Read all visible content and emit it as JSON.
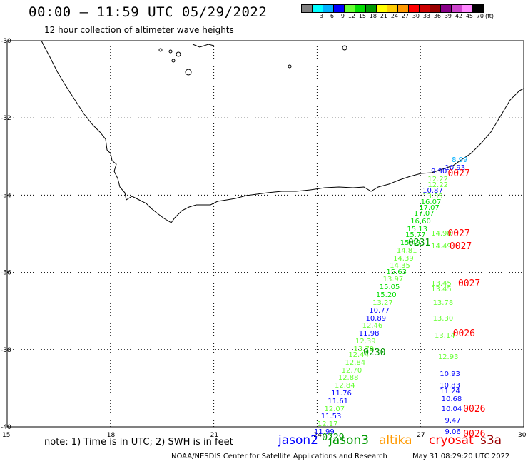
{
  "title": "00:00 – 11:59 UTC 05/29/2022",
  "subtitle": "12 hour collection of altimeter wave heights",
  "colorbar": {
    "unit": "(ft)",
    "colors": [
      "#808080",
      "#00ffff",
      "#00b0ff",
      "#0000ff",
      "#66ff33",
      "#00dd00",
      "#009900",
      "#ffff00",
      "#ffcc00",
      "#ff9900",
      "#ff0000",
      "#cc0000",
      "#990000",
      "#880088",
      "#cc44cc",
      "#ff88ff",
      "#000000"
    ],
    "labels": [
      "",
      "3",
      "6",
      "9",
      "12",
      "15",
      "18",
      "21",
      "24",
      "27",
      "30",
      "33",
      "36",
      "39",
      "42",
      "45",
      "70"
    ]
  },
  "lat_labels": [
    "-30",
    "-32",
    "-34",
    "-36",
    "-38",
    "-40"
  ],
  "lon_labels": [
    "15",
    "18",
    "21",
    "24",
    "27",
    "30"
  ],
  "observations": [
    {
      "v": "8.99",
      "c": "#00b0ff",
      "lon": 28.2,
      "lat": -33.1
    },
    {
      "v": "10.93",
      "c": "#0000ff",
      "lon": 28.0,
      "lat": -33.3
    },
    {
      "v": "9.90",
      "c": "#0000ff",
      "lon": 27.6,
      "lat": -33.4
    },
    {
      "v": "12.22",
      "c": "#66ff33",
      "lon": 27.5,
      "lat": -33.6
    },
    {
      "v": "12.22",
      "c": "#66ff33",
      "lon": 27.5,
      "lat": -33.75
    },
    {
      "v": "10.87",
      "c": "#0000ff",
      "lon": 27.35,
      "lat": -33.9
    },
    {
      "v": "13.35",
      "c": "#66ff33",
      "lon": 27.35,
      "lat": -34.05
    },
    {
      "v": "16.07",
      "c": "#00dd00",
      "lon": 27.3,
      "lat": -34.2
    },
    {
      "v": "17.07",
      "c": "#00dd00",
      "lon": 27.25,
      "lat": -34.35
    },
    {
      "v": "17.07",
      "c": "#00dd00",
      "lon": 27.1,
      "lat": -34.5
    },
    {
      "v": "16.60",
      "c": "#00dd00",
      "lon": 27.0,
      "lat": -34.7
    },
    {
      "v": "15.13",
      "c": "#00dd00",
      "lon": 26.9,
      "lat": -34.9
    },
    {
      "v": "15.77",
      "c": "#00dd00",
      "lon": 26.85,
      "lat": -35.05
    },
    {
      "v": "15.49",
      "c": "#00dd00",
      "lon": 26.7,
      "lat": -35.25
    },
    {
      "v": "14.81",
      "c": "#66ff33",
      "lon": 26.6,
      "lat": -35.45
    },
    {
      "v": "14.39",
      "c": "#66ff33",
      "lon": 26.5,
      "lat": -35.65
    },
    {
      "v": "14.35",
      "c": "#66ff33",
      "lon": 26.4,
      "lat": -35.85
    },
    {
      "v": "15.63",
      "c": "#00dd00",
      "lon": 26.3,
      "lat": -36.0
    },
    {
      "v": "13.97",
      "c": "#66ff33",
      "lon": 26.2,
      "lat": -36.2
    },
    {
      "v": "15.05",
      "c": "#00dd00",
      "lon": 26.1,
      "lat": -36.4
    },
    {
      "v": "15.20",
      "c": "#00dd00",
      "lon": 26.0,
      "lat": -36.6
    },
    {
      "v": "13.27",
      "c": "#66ff33",
      "lon": 25.9,
      "lat": -36.8
    },
    {
      "v": "10.77",
      "c": "#0000ff",
      "lon": 25.8,
      "lat": -37.0
    },
    {
      "v": "10.89",
      "c": "#0000ff",
      "lon": 25.7,
      "lat": -37.2
    },
    {
      "v": "12.46",
      "c": "#66ff33",
      "lon": 25.6,
      "lat": -37.4
    },
    {
      "v": "11.98",
      "c": "#0000ff",
      "lon": 25.5,
      "lat": -37.6
    },
    {
      "v": "12.39",
      "c": "#66ff33",
      "lon": 25.4,
      "lat": -37.8
    },
    {
      "v": "13.79",
      "c": "#66ff33",
      "lon": 25.35,
      "lat": -38.0
    },
    {
      "v": "12.44",
      "c": "#66ff33",
      "lon": 25.2,
      "lat": -38.15
    },
    {
      "v": "12.84",
      "c": "#66ff33",
      "lon": 25.1,
      "lat": -38.35
    },
    {
      "v": "12.70",
      "c": "#66ff33",
      "lon": 25.0,
      "lat": -38.55
    },
    {
      "v": "12.88",
      "c": "#66ff33",
      "lon": 24.9,
      "lat": -38.75
    },
    {
      "v": "12.84",
      "c": "#66ff33",
      "lon": 24.8,
      "lat": -38.95
    },
    {
      "v": "11.76",
      "c": "#0000ff",
      "lon": 24.7,
      "lat": -39.15
    },
    {
      "v": "11.61",
      "c": "#0000ff",
      "lon": 24.6,
      "lat": -39.35
    },
    {
      "v": "12.07",
      "c": "#66ff33",
      "lon": 24.5,
      "lat": -39.55
    },
    {
      "v": "11.53",
      "c": "#0000ff",
      "lon": 24.4,
      "lat": -39.75
    },
    {
      "v": "12.17",
      "c": "#66ff33",
      "lon": 24.3,
      "lat": -39.95
    },
    {
      "v": "11.99",
      "c": "#0000ff",
      "lon": 24.2,
      "lat": -40.15
    },
    {
      "v": "14.98",
      "c": "#66ff33",
      "lon": 27.6,
      "lat": -35.0
    },
    {
      "v": "14.49",
      "c": "#66ff33",
      "lon": 27.6,
      "lat": -35.35
    },
    {
      "v": "13.45",
      "c": "#66ff33",
      "lon": 27.6,
      "lat": -36.3
    },
    {
      "v": "13.45",
      "c": "#66ff33",
      "lon": 27.6,
      "lat": -36.45
    },
    {
      "v": "13.78",
      "c": "#66ff33",
      "lon": 27.65,
      "lat": -36.8
    },
    {
      "v": "13.30",
      "c": "#66ff33",
      "lon": 27.65,
      "lat": -37.2
    },
    {
      "v": "13.14",
      "c": "#66ff33",
      "lon": 27.7,
      "lat": -37.65
    },
    {
      "v": "12.93",
      "c": "#66ff33",
      "lon": 27.8,
      "lat": -38.2
    },
    {
      "v": "10.93",
      "c": "#0000ff",
      "lon": 27.85,
      "lat": -38.65
    },
    {
      "v": "10.83",
      "c": "#0000ff",
      "lon": 27.85,
      "lat": -38.95
    },
    {
      "v": "11.24",
      "c": "#0000ff",
      "lon": 27.85,
      "lat": -39.1
    },
    {
      "v": "10.68",
      "c": "#0000ff",
      "lon": 27.9,
      "lat": -39.3
    },
    {
      "v": "10.04",
      "c": "#0000ff",
      "lon": 27.9,
      "lat": -39.55
    },
    {
      "v": "9.47",
      "c": "#0000ff",
      "lon": 28.0,
      "lat": -39.85
    },
    {
      "v": "9.06",
      "c": "#0000ff",
      "lon": 28.0,
      "lat": -40.15
    }
  ],
  "time_marks": [
    {
      "t": "0027",
      "c": "#ff0000",
      "lon": 28.0,
      "lat": -33.45
    },
    {
      "t": "0027",
      "c": "#ff0000",
      "lon": 28.0,
      "lat": -35.0
    },
    {
      "t": "0027",
      "c": "#ff0000",
      "lon": 28.05,
      "lat": -35.35
    },
    {
      "t": "0027",
      "c": "#ff0000",
      "lon": 28.3,
      "lat": -36.3
    },
    {
      "t": "0026",
      "c": "#ff0000",
      "lon": 28.15,
      "lat": -37.6
    },
    {
      "t": "0026",
      "c": "#ff0000",
      "lon": 28.45,
      "lat": -39.55
    },
    {
      "t": "0026",
      "c": "#ff0000",
      "lon": 28.45,
      "lat": -40.2
    },
    {
      "t": "0231",
      "c": "#009900",
      "lon": 26.85,
      "lat": -35.25
    },
    {
      "t": "0230",
      "c": "#009900",
      "lon": 25.55,
      "lat": -38.1
    },
    {
      "t": "0229",
      "c": "#009900",
      "lon": 24.35,
      "lat": -40.3
    }
  ],
  "note": "note: 1) Time is in UTC; 2) SWH is in feet",
  "legend": [
    {
      "name": "jason2",
      "color": "#0000ff"
    },
    {
      "name": "jason3",
      "color": "#009900"
    },
    {
      "name": "altika",
      "color": "#ff9900"
    },
    {
      "name": "cryosat",
      "color": "#ff0000"
    },
    {
      "name": "s3a",
      "color": "#990000"
    }
  ],
  "footer": "NOAA/NESDIS Center for Satellite Applications and Research",
  "footer_time": "May 31 08:29:20 UTC 2022"
}
